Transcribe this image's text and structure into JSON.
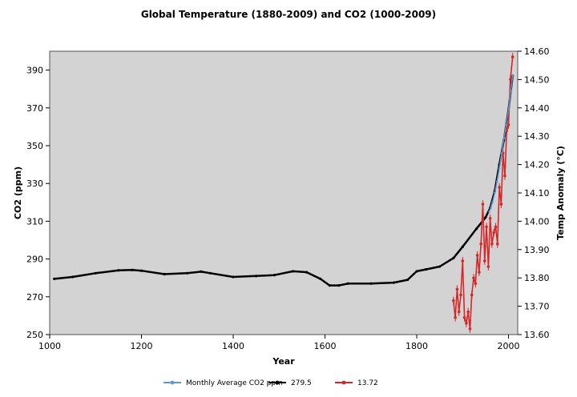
{
  "chart_data": {
    "type": "line",
    "title": "Global Temperature (1880-2009) and CO2 (1000-2009)",
    "xlabel": "Year",
    "ylabel_left": "CO2 (ppm)",
    "ylabel_right": "Temp Anomaly (°C)",
    "xlim": [
      1000,
      2020
    ],
    "ylim_left": [
      250,
      400
    ],
    "ylim_right": [
      13.6,
      14.6
    ],
    "x_ticks": [
      1000,
      1200,
      1400,
      1600,
      1800,
      2000
    ],
    "y_left_ticks": [
      250,
      270,
      290,
      310,
      330,
      350,
      370,
      390
    ],
    "y_right_ticks": [
      "13.60",
      "13.70",
      "13.80",
      "13.90",
      "14.00",
      "14.10",
      "14.20",
      "14.30",
      "14.40",
      "14.50",
      "14.60"
    ],
    "grid": false,
    "legend_position": "bottom",
    "colors": {
      "plot_bg": "#d3d3d3",
      "co2_monthly": "#5b9bd5",
      "co2_ice": "#000000",
      "temp": "#d62728"
    },
    "series": [
      {
        "name": "Monthly Average CO2 ppm",
        "axis": "left",
        "x": [
          1958,
          1965,
          1970,
          1975,
          1980,
          1985,
          1990,
          1995,
          2000,
          2005,
          2009
        ],
        "values": [
          315,
          320,
          325,
          331,
          338,
          346,
          354,
          361,
          369,
          379,
          387
        ]
      },
      {
        "name": "279.5",
        "axis": "left",
        "x": [
          1010,
          1050,
          1100,
          1150,
          1180,
          1200,
          1250,
          1300,
          1330,
          1350,
          1400,
          1450,
          1490,
          1530,
          1560,
          1590,
          1610,
          1630,
          1650,
          1700,
          1750,
          1780,
          1800,
          1820,
          1850,
          1880,
          1900,
          1930,
          1950,
          1960,
          1970,
          1980,
          1990,
          2000,
          2009
        ],
        "values": [
          279.5,
          280.5,
          282.5,
          284,
          284.2,
          283.8,
          282,
          282.5,
          283.3,
          282.5,
          280.5,
          281,
          281.5,
          283.5,
          283,
          279.5,
          276,
          276,
          277,
          277,
          277.5,
          279,
          283.5,
          284.5,
          286,
          290.5,
          296.5,
          306,
          312,
          317,
          326,
          340,
          353,
          369,
          387
        ]
      },
      {
        "name": "13.72",
        "axis": "right",
        "x": [
          1880,
          1884,
          1888,
          1892,
          1896,
          1900,
          1904,
          1908,
          1912,
          1916,
          1920,
          1924,
          1928,
          1932,
          1936,
          1940,
          1944,
          1948,
          1952,
          1956,
          1960,
          1964,
          1968,
          1972,
          1976,
          1980,
          1984,
          1988,
          1992,
          1996,
          2000,
          2004,
          2009
        ],
        "values": [
          13.72,
          13.66,
          13.76,
          13.68,
          13.74,
          13.86,
          13.66,
          13.64,
          13.68,
          13.62,
          13.74,
          13.8,
          13.78,
          13.88,
          13.82,
          13.92,
          14.06,
          13.86,
          13.98,
          13.84,
          14.01,
          13.92,
          13.96,
          13.98,
          13.92,
          14.12,
          14.06,
          14.24,
          14.16,
          14.32,
          14.34,
          14.5,
          14.58
        ]
      }
    ]
  }
}
